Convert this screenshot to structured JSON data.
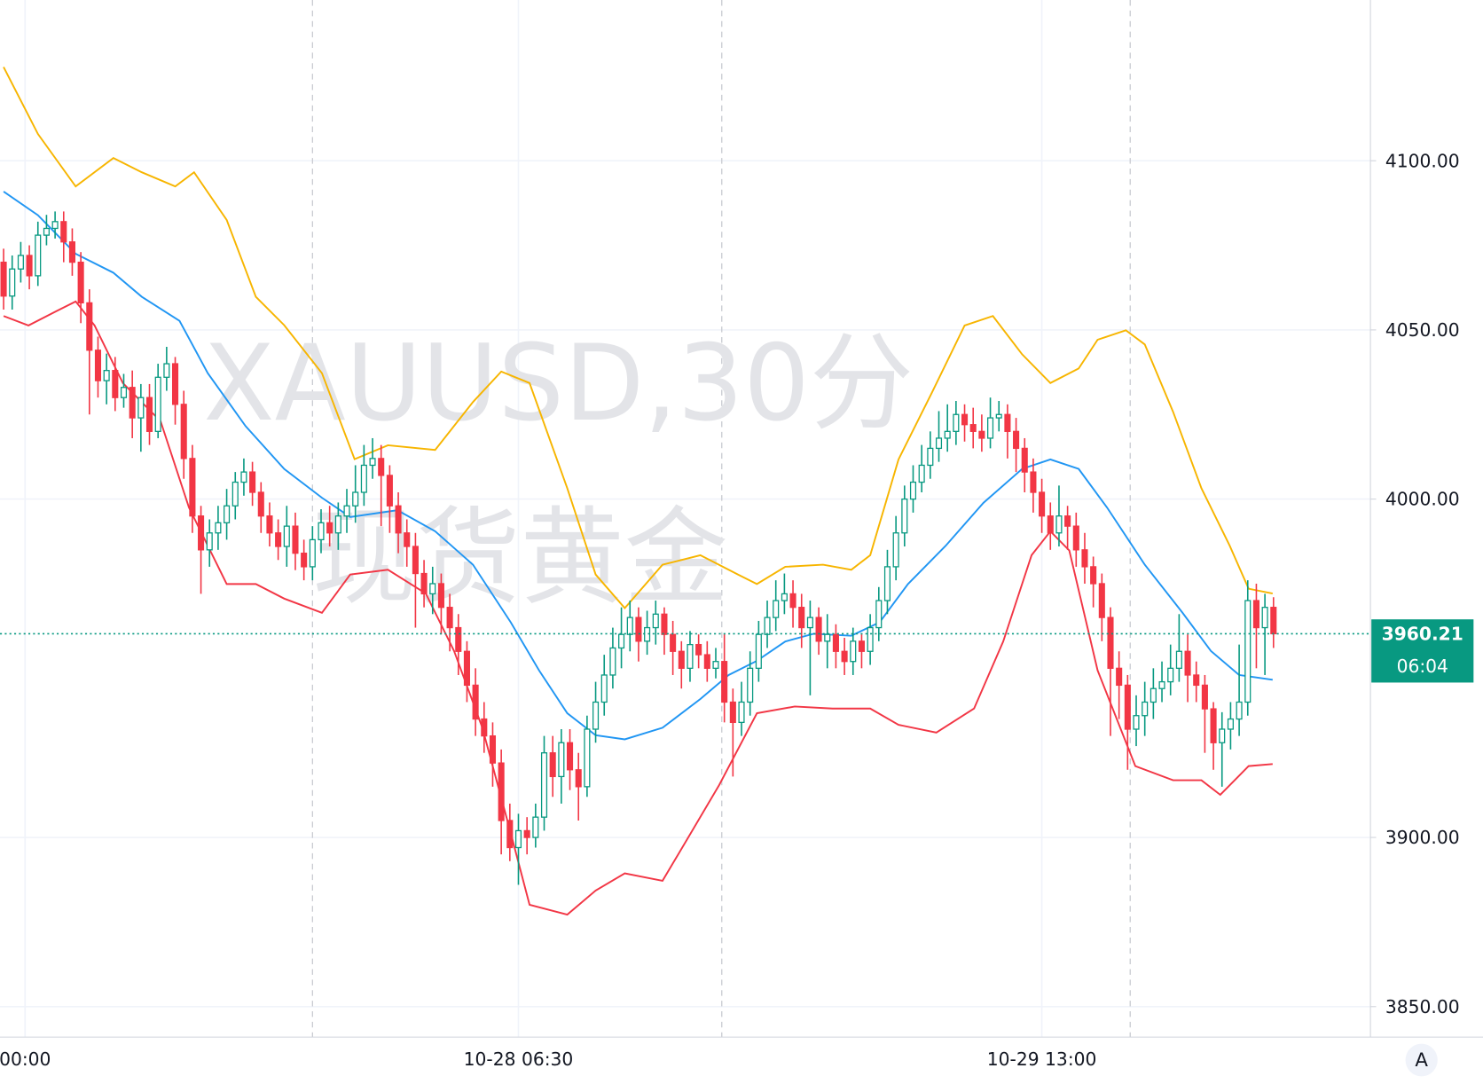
{
  "chart_data": {
    "type": "candlestick",
    "watermark": [
      "XAUUSD,30分",
      "现货黄金"
    ],
    "ylim": [
      3841,
      4147.5
    ],
    "yticks": [
      {
        "value": 3850,
        "label": "3850.00"
      },
      {
        "value": 3900,
        "label": "3900.00"
      },
      {
        "value": 4000,
        "label": "4000.00"
      },
      {
        "value": 4050,
        "label": "4050.00"
      },
      {
        "value": 4100,
        "label": "4100.00"
      }
    ],
    "xlim": [
      -0.42,
      159.3
    ],
    "xticks": [
      {
        "value": 2.5,
        "label": "00:00"
      },
      {
        "value": 60,
        "label": "10-28 06:30"
      },
      {
        "value": 121,
        "label": "10-29 13:00"
      }
    ],
    "x_dashed_lines": [
      36,
      83.7,
      131.3
    ],
    "grid": true,
    "up_color": "#089981",
    "down_color": "#f23645",
    "open": [
      4070,
      4060,
      4068,
      4072,
      4066,
      4078,
      4080,
      4082,
      4076,
      4070,
      4058,
      4044,
      4035,
      4038,
      4030,
      4033,
      4024,
      4030,
      4020,
      4036,
      4040,
      4028,
      4012,
      3995,
      3985,
      3990,
      3993,
      3998,
      4005,
      4008,
      4002,
      3995,
      3990,
      3986,
      3992,
      3984,
      3980,
      3988,
      3993,
      3990,
      3995,
      3998,
      4002,
      4010,
      4012,
      4007,
      3998,
      3990,
      3986,
      3978,
      3972,
      3975,
      3968,
      3962,
      3955,
      3945,
      3935,
      3930,
      3922,
      3905,
      3897,
      3902,
      3900,
      3906,
      3925,
      3918,
      3928,
      3920,
      3915,
      3932,
      3940,
      3948,
      3956,
      3960,
      3965,
      3958,
      3962,
      3966,
      3960,
      3955,
      3950,
      3957,
      3954,
      3950,
      3952,
      3940,
      3934,
      3940,
      3950,
      3960,
      3965,
      3970,
      3972,
      3968,
      3962,
      3965,
      3958,
      3960,
      3955,
      3952,
      3958,
      3955,
      3962,
      3970,
      3980,
      3990,
      4000,
      4005,
      4010,
      4015,
      4018,
      4020,
      4025,
      4022,
      4020,
      4018,
      4024,
      4025,
      4020,
      4015,
      4008,
      4002,
      3995,
      3990,
      3995,
      3992,
      3985,
      3980,
      3975,
      3965,
      3950,
      3945,
      3932,
      3936,
      3940,
      3944,
      3946,
      3950,
      3955,
      3948,
      3945,
      3938,
      3928,
      3932,
      3935,
      3940,
      3970,
      3962,
      3968
    ],
    "high": [
      4074,
      4072,
      4076,
      4075,
      4082,
      4084,
      4085,
      4085,
      4080,
      4073,
      4062,
      4048,
      4043,
      4042,
      4037,
      4038,
      4034,
      4034,
      4040,
      4045,
      4042,
      4032,
      4016,
      3998,
      3994,
      3998,
      4003,
      4008,
      4012,
      4011,
      4005,
      3999,
      3994,
      3998,
      3996,
      3988,
      3992,
      3997,
      3998,
      3999,
      4003,
      4010,
      4016,
      4018,
      4016,
      4010,
      4002,
      3994,
      3990,
      3982,
      3980,
      3978,
      3972,
      3966,
      3958,
      3950,
      3940,
      3934,
      3926,
      3910,
      3907,
      3906,
      3910,
      3930,
      3930,
      3932,
      3932,
      3925,
      3936,
      3946,
      3954,
      3962,
      3968,
      3970,
      3968,
      3967,
      3970,
      3968,
      3964,
      3958,
      3961,
      3960,
      3958,
      3956,
      3960,
      3944,
      3946,
      3955,
      3964,
      3970,
      3976,
      3978,
      3976,
      3972,
      3970,
      3968,
      3966,
      3963,
      3959,
      3962,
      3960,
      3966,
      3974,
      3985,
      3995,
      4004,
      4010,
      4016,
      4020,
      4026,
      4028,
      4029,
      4028,
      4027,
      4025,
      4030,
      4029,
      4028,
      4024,
      4018,
      4012,
      4006,
      3999,
      4004,
      3998,
      3996,
      3990,
      3983,
      3978,
      3968,
      3955,
      3948,
      3942,
      3946,
      3950,
      3952,
      3957,
      3966,
      3960,
      3952,
      3948,
      3940,
      3937,
      3940,
      3957,
      3976,
      3975,
      3972,
      3971
    ],
    "low": [
      4056,
      4056,
      4064,
      4062,
      4063,
      4075,
      4077,
      4070,
      4066,
      4052,
      4025,
      4030,
      4028,
      4026,
      4027,
      4018,
      4014,
      4016,
      4018,
      4032,
      4022,
      4006,
      3990,
      3972,
      3980,
      3985,
      3988,
      3994,
      4001,
      3998,
      3990,
      3986,
      3982,
      3980,
      3979,
      3976,
      3976,
      3984,
      3986,
      3985,
      3990,
      3993,
      3998,
      4006,
      3992,
      3990,
      3984,
      3980,
      3962,
      3968,
      3966,
      3960,
      3955,
      3948,
      3940,
      3930,
      3925,
      3915,
      3895,
      3893,
      3886,
      3895,
      3897,
      3902,
      3912,
      3910,
      3914,
      3905,
      3912,
      3928,
      3936,
      3944,
      3950,
      3955,
      3952,
      3954,
      3957,
      3954,
      3948,
      3944,
      3946,
      3950,
      3946,
      3947,
      3934,
      3918,
      3930,
      3936,
      3946,
      3956,
      3961,
      3966,
      3962,
      3956,
      3942,
      3954,
      3950,
      3950,
      3948,
      3948,
      3950,
      3951,
      3958,
      3966,
      3976,
      3986,
      3996,
      4002,
      4006,
      4011,
      4014,
      4016,
      4017,
      4015,
      4014,
      4015,
      4020,
      4012,
      4008,
      4002,
      3996,
      3990,
      3985,
      3986,
      3985,
      3980,
      3975,
      3968,
      3958,
      3930,
      3935,
      3920,
      3927,
      3930,
      3935,
      3940,
      3942,
      3946,
      3940,
      3940,
      3925,
      3920,
      3915,
      3926,
      3930,
      3936,
      3950,
      3948,
      3956
    ],
    "close": [
      4060,
      4068,
      4072,
      4066,
      4078,
      4080,
      4082,
      4076,
      4070,
      4058,
      4044,
      4035,
      4038,
      4030,
      4033,
      4024,
      4030,
      4020,
      4036,
      4040,
      4028,
      4012,
      3995,
      3985,
      3990,
      3993,
      3998,
      4005,
      4008,
      4002,
      3995,
      3990,
      3986,
      3992,
      3984,
      3980,
      3988,
      3993,
      3990,
      3995,
      3998,
      4002,
      4010,
      4012,
      4007,
      3998,
      3990,
      3986,
      3978,
      3972,
      3975,
      3968,
      3962,
      3955,
      3945,
      3935,
      3930,
      3922,
      3905,
      3897,
      3902,
      3900,
      3906,
      3925,
      3918,
      3928,
      3920,
      3915,
      3932,
      3940,
      3948,
      3956,
      3960,
      3965,
      3958,
      3962,
      3966,
      3960,
      3955,
      3950,
      3957,
      3954,
      3950,
      3952,
      3940,
      3934,
      3940,
      3950,
      3960,
      3965,
      3970,
      3972,
      3968,
      3962,
      3965,
      3958,
      3960,
      3955,
      3952,
      3958,
      3955,
      3962,
      3970,
      3980,
      3990,
      4000,
      4005,
      4010,
      4015,
      4018,
      4020,
      4025,
      4022,
      4020,
      4018,
      4024,
      4025,
      4020,
      4015,
      4008,
      4002,
      3995,
      3990,
      3995,
      3992,
      3985,
      3980,
      3975,
      3965,
      3950,
      3945,
      3932,
      3936,
      3940,
      3944,
      3946,
      3950,
      3955,
      3948,
      3945,
      3938,
      3928,
      3932,
      3935,
      3940,
      3970,
      3962,
      3968,
      3960.21
    ],
    "bands": [
      {
        "color": "#f7b500",
        "x": [
          0,
          4,
          8.4,
          12.8,
          16.1,
          20,
          22.2,
          26,
          29.4,
          32.7,
          37.1,
          40.9,
          44.8,
          50.3,
          54.7,
          58,
          61.3,
          65.7,
          69,
          72.4,
          76.8,
          81.2,
          85.6,
          87.8,
          91.1,
          95.5,
          98.8,
          101,
          104.3,
          108.2,
          112,
          115.3,
          118.7,
          122,
          125.3,
          127.5,
          130.8,
          133,
          136.3,
          139.6,
          142.9,
          145.1,
          147.9
        ],
        "values": [
          4127.7,
          4107.9,
          4092.4,
          4100.8,
          4096.6,
          4092.4,
          4096.6,
          4082.5,
          4059.8,
          4051.4,
          4037.2,
          4011.8,
          4015.9,
          4014.5,
          4028.7,
          4037.7,
          4034.3,
          4003.2,
          3977.7,
          3967.8,
          3980.6,
          3983.4,
          3977.7,
          3974.9,
          3980.0,
          3980.6,
          3979.1,
          3983.4,
          4011.7,
          4031.5,
          4051.3,
          4054.1,
          4042.8,
          4034.3,
          4038.6,
          4047.1,
          4049.9,
          4045.7,
          4025.8,
          4003.2,
          3986.2,
          3973.5,
          3972.1
        ]
      },
      {
        "color": "#2196f3",
        "x": [
          0,
          4,
          8.4,
          12.8,
          16.1,
          20.5,
          23.8,
          28.2,
          32.7,
          37.1,
          40.4,
          45.9,
          50.3,
          54.7,
          59.1,
          62.4,
          65.7,
          69,
          72.4,
          76.8,
          81.2,
          84.5,
          87.8,
          91.1,
          94.4,
          98.8,
          102.1,
          105.4,
          109.8,
          114.2,
          118.7,
          122,
          125.3,
          128.6,
          133,
          137.4,
          140.7,
          144,
          147.9
        ],
        "values": [
          4090.9,
          4083.9,
          4072.5,
          4066.9,
          4059.8,
          4052.7,
          4037.2,
          4021.6,
          4008.9,
          4000.4,
          3994.7,
          3996.7,
          3990.5,
          3980.6,
          3963.6,
          3949.4,
          3936.7,
          3930.2,
          3929.0,
          3932.4,
          3940.9,
          3948.0,
          3952.2,
          3957.9,
          3960.2,
          3959.6,
          3963.6,
          3974.9,
          3986.2,
          3998.9,
          4008.9,
          4011.7,
          4008.9,
          3997.5,
          3980.6,
          3966.4,
          3955.1,
          3948.0,
          3946.6
        ]
      },
      {
        "color": "#f23645",
        "x": [
          0,
          2.9,
          6.2,
          8.4,
          10.6,
          13.9,
          18.3,
          21.6,
          26,
          29.4,
          32.7,
          37.1,
          40.4,
          44.8,
          49.2,
          52.5,
          55.8,
          59.1,
          61.3,
          65.7,
          69,
          72.4,
          76.8,
          80.1,
          83.4,
          87.8,
          92.2,
          96.6,
          101,
          104.3,
          108.7,
          113.1,
          116.5,
          119.8,
          122,
          124.2,
          127.5,
          131.9,
          136.3,
          139.6,
          141.8,
          145.1,
          147.9
        ],
        "values": [
          4054.1,
          4051.3,
          4055.6,
          4058.4,
          4051.3,
          4034.3,
          4023.0,
          3997.5,
          3974.9,
          3974.9,
          3970.6,
          3966.4,
          3977.7,
          3979.1,
          3972.1,
          3955.1,
          3932.4,
          3901.3,
          3880.1,
          3877.2,
          3884.3,
          3889.4,
          3887.2,
          3901.3,
          3915.5,
          3936.7,
          3938.7,
          3938.1,
          3938.1,
          3933.3,
          3931.0,
          3938.1,
          3957.9,
          3983.4,
          3990.5,
          3984.8,
          3949.4,
          3921.1,
          3916.9,
          3916.9,
          3912.6,
          3921.1,
          3921.7
        ]
      }
    ],
    "last_price": 3960.21,
    "countdown": "06:04",
    "scale_button": "A"
  }
}
